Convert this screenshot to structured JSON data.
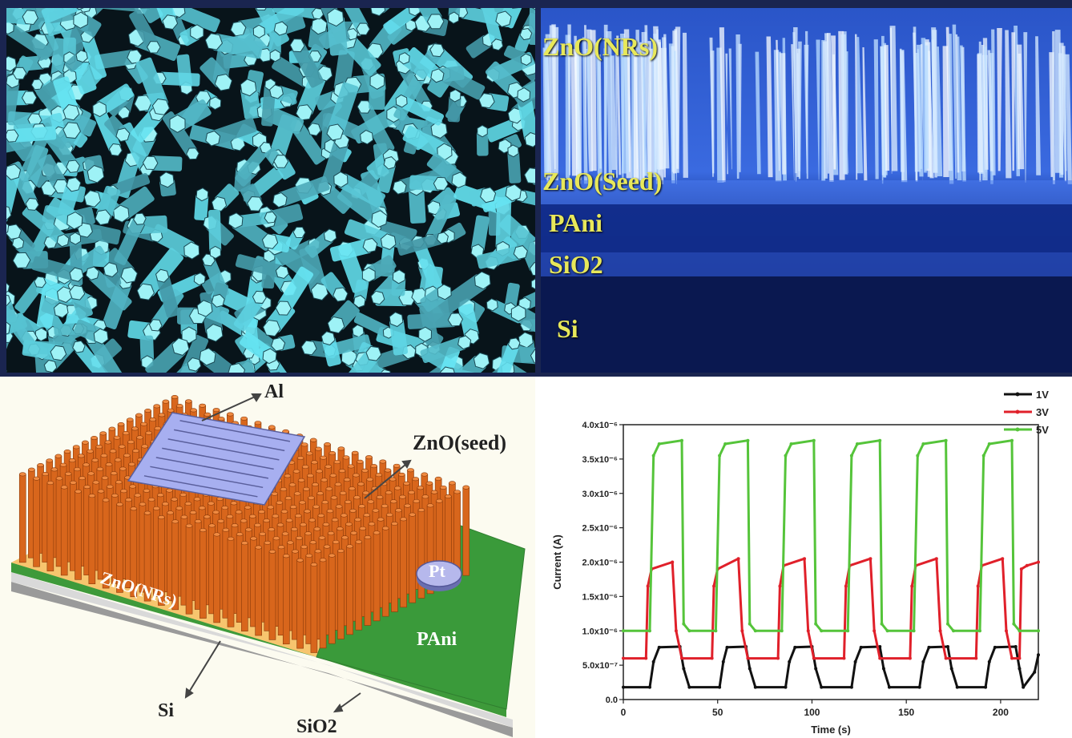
{
  "sem_cross": {
    "labels": {
      "zno_nrs": "ZnO(NRs)",
      "zno_seed": "ZnO(Seed)",
      "pani": "PAni",
      "sio2": "SiO2",
      "si": "Si"
    }
  },
  "schematic": {
    "labels": {
      "al": "Al",
      "zno_seed": "ZnO(seed)",
      "pt": "Pt",
      "zno_nrs": "ZnO(NRs)",
      "pani": "PAni",
      "si": "Si",
      "sio2": "SiO2"
    },
    "colors": {
      "nanorod": "#d8661c",
      "seed": "#f7c56e",
      "pani": "#3a9a3a",
      "electrode": "#9fa8e6"
    }
  },
  "chart_data": {
    "type": "line",
    "xlabel": "Time (s)",
    "ylabel": "Current (A)",
    "xlim": [
      0,
      220
    ],
    "ylim": [
      0,
      4e-06
    ],
    "x_ticks": [
      0,
      50,
      100,
      150,
      200
    ],
    "y_ticks": [
      0,
      5e-07,
      1e-06,
      1.5e-06,
      2e-06,
      2.5e-06,
      3e-06,
      3.5e-06,
      4e-06
    ],
    "y_tick_labels": [
      "0.0",
      "5.0x10⁻⁷",
      "1.0x10⁻⁶",
      "1.5x10⁻⁶",
      "2.0x10⁻⁶",
      "2.5x10⁻⁶",
      "3.0x10⁻⁶",
      "3.5x10⁻⁶",
      "4.0x10⁻⁶"
    ],
    "legend_position": "top-right",
    "series": [
      {
        "name": "1V",
        "color": "#111111",
        "x": [
          0,
          14,
          16,
          19,
          30,
          32,
          35,
          51,
          53,
          55,
          65,
          67,
          70,
          86,
          88,
          91,
          100,
          102,
          105,
          121,
          123,
          126,
          136,
          138,
          141,
          157,
          159,
          162,
          172,
          174,
          177,
          192,
          194,
          197,
          208,
          210,
          212,
          218,
          220
        ],
        "values": [
          1.8e-07,
          1.8e-07,
          5.5e-07,
          7.6e-07,
          7.7e-07,
          4.5e-07,
          1.8e-07,
          1.8e-07,
          5.5e-07,
          7.6e-07,
          7.7e-07,
          4.5e-07,
          1.8e-07,
          1.8e-07,
          5.5e-07,
          7.6e-07,
          7.7e-07,
          4.5e-07,
          1.8e-07,
          1.8e-07,
          5.5e-07,
          7.6e-07,
          7.7e-07,
          4.5e-07,
          1.8e-07,
          1.8e-07,
          5.5e-07,
          7.6e-07,
          7.7e-07,
          4.5e-07,
          1.8e-07,
          1.8e-07,
          5.5e-07,
          7.6e-07,
          7.7e-07,
          4.5e-07,
          1.8e-07,
          4e-07,
          6.5e-07
        ]
      },
      {
        "name": "3V",
        "color": "#e0202a",
        "x": [
          0,
          12,
          13,
          15,
          26,
          28,
          31,
          47,
          48,
          50,
          61,
          63,
          66,
          82,
          83,
          85,
          96,
          98,
          101,
          117,
          118,
          120,
          131,
          133,
          136,
          152,
          153,
          155,
          166,
          168,
          171,
          187,
          188,
          190,
          201,
          203,
          206,
          210,
          211,
          214,
          220
        ],
        "values": [
          6e-07,
          6e-07,
          1.65e-06,
          1.9e-06,
          2e-06,
          1e-06,
          6e-07,
          6e-07,
          1.65e-06,
          1.9e-06,
          2.05e-06,
          1e-06,
          6e-07,
          6e-07,
          1.65e-06,
          1.95e-06,
          2.05e-06,
          1e-06,
          6e-07,
          6e-07,
          1.65e-06,
          1.95e-06,
          2.05e-06,
          1e-06,
          6e-07,
          6e-07,
          1.65e-06,
          1.95e-06,
          2.05e-06,
          1e-06,
          6e-07,
          6e-07,
          1.65e-06,
          1.95e-06,
          2.05e-06,
          1e-06,
          6e-07,
          6e-07,
          1.9e-06,
          1.95e-06,
          2e-06
        ]
      },
      {
        "name": "5V",
        "color": "#55c43a",
        "x": [
          0,
          14,
          16,
          19,
          31,
          32,
          35,
          49,
          51,
          54,
          66,
          67,
          70,
          84,
          86,
          89,
          101,
          102,
          105,
          119,
          121,
          124,
          136,
          137,
          140,
          154,
          156,
          159,
          171,
          172,
          175,
          189,
          191,
          194,
          206,
          207,
          210,
          220
        ],
        "values": [
          1e-06,
          1e-06,
          3.55e-06,
          3.72e-06,
          3.77e-06,
          1.1e-06,
          1e-06,
          1e-06,
          3.55e-06,
          3.72e-06,
          3.77e-06,
          1.1e-06,
          1e-06,
          1e-06,
          3.55e-06,
          3.72e-06,
          3.77e-06,
          1.1e-06,
          1e-06,
          1e-06,
          3.55e-06,
          3.72e-06,
          3.77e-06,
          1.1e-06,
          1e-06,
          1e-06,
          3.55e-06,
          3.72e-06,
          3.77e-06,
          1.1e-06,
          1e-06,
          1e-06,
          3.55e-06,
          3.72e-06,
          3.77e-06,
          1.1e-06,
          1e-06,
          1e-06
        ]
      }
    ]
  }
}
